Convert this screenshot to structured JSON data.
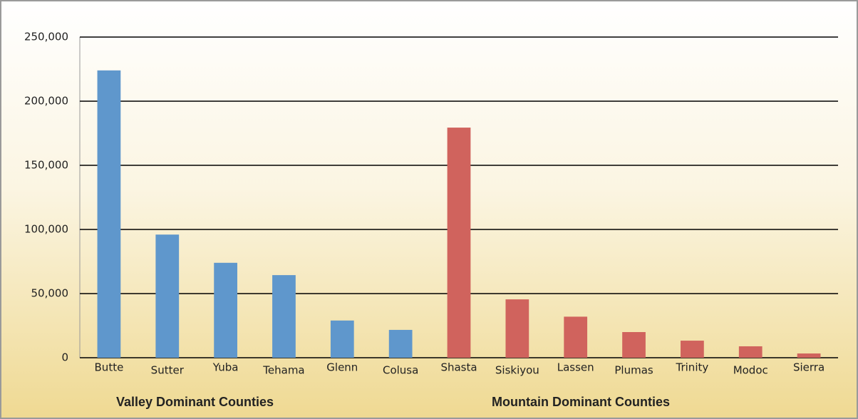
{
  "chart_data": {
    "type": "bar",
    "categories": [
      "Butte",
      "Sutter",
      "Yuba",
      "Tehama",
      "Glenn",
      "Colusa",
      "Shasta",
      "Siskiyou",
      "Lassen",
      "Plumas",
      "Trinity",
      "Modoc",
      "Sierra"
    ],
    "series": [
      {
        "name": "Valley Dominant Counties",
        "color": "#5f97cc",
        "values": [
          224000,
          96000,
          74000,
          64400,
          29000,
          21700,
          null,
          null,
          null,
          null,
          null,
          null,
          null
        ]
      },
      {
        "name": "Mountain Dominant Counties",
        "color": "#d0635d",
        "values": [
          null,
          null,
          null,
          null,
          null,
          null,
          179400,
          45500,
          32000,
          20000,
          13300,
          8900,
          3300
        ]
      }
    ],
    "ylim": [
      0,
      250000
    ],
    "yticks": [
      0,
      {
        "value": 50000,
        "label": "50,000"
      },
      {
        "value": 100000,
        "label": "100,000"
      },
      {
        "value": 150000,
        "label": "150,000"
      },
      {
        "value": 200000,
        "label": "200,000"
      },
      {
        "value": 250000,
        "label": "250,000"
      }
    ],
    "grid": true
  }
}
